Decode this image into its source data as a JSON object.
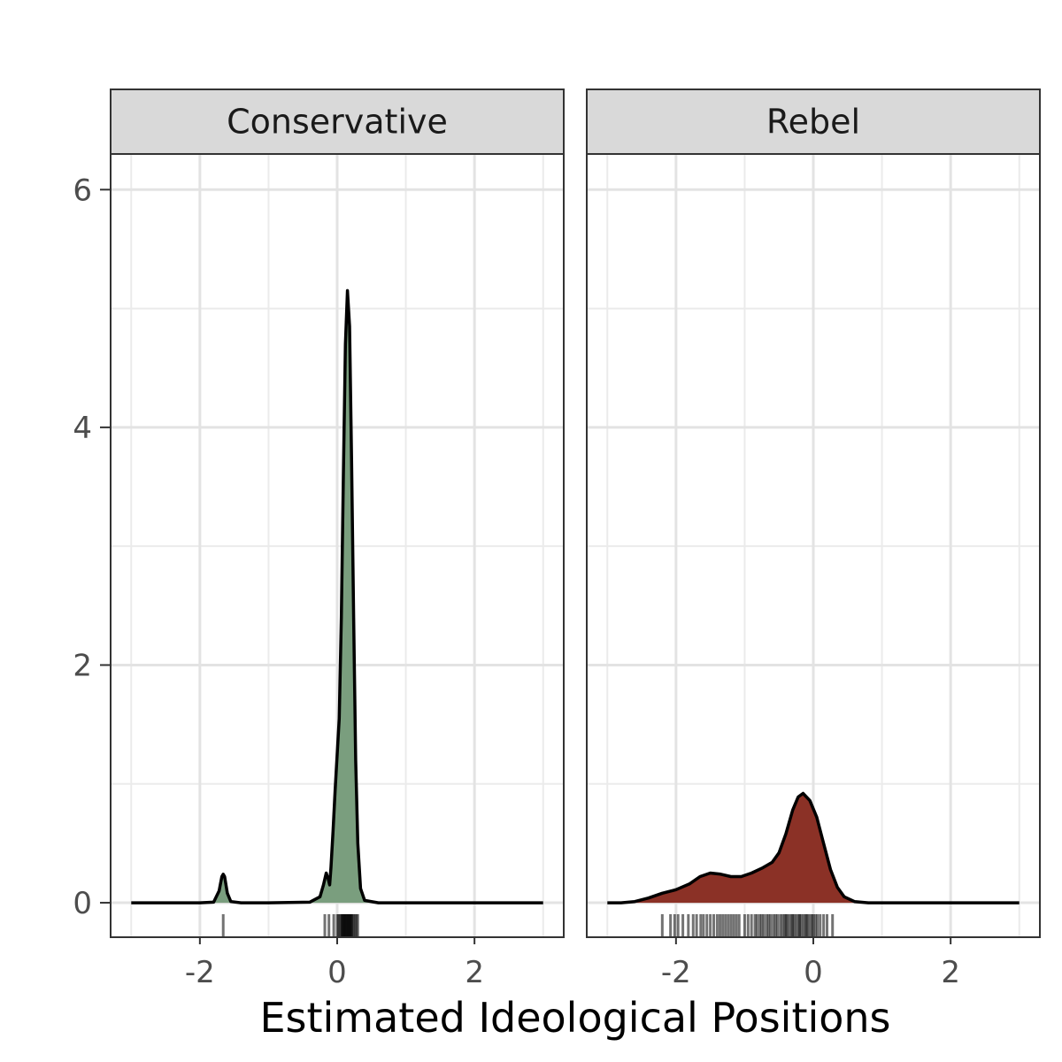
{
  "chart_data": {
    "type": "area",
    "xlabel": "Estimated Ideological Positions",
    "ylabel": "",
    "xlim": [
      -3.3,
      3.3
    ],
    "ylim": [
      -0.29,
      6.3
    ],
    "x_ticks": [
      -2,
      0,
      2
    ],
    "x_tick_labels": [
      "-2",
      "0",
      "2"
    ],
    "y_ticks": [
      0,
      2,
      4,
      6
    ],
    "y_tick_labels": [
      "0",
      "2",
      "4",
      "6"
    ],
    "grid": true,
    "legend": "none",
    "panels": [
      {
        "name": "Conservative",
        "fill_color": "#7a9e7e",
        "density": {
          "x": [
            -3.0,
            -2.0,
            -1.8,
            -1.72,
            -1.68,
            -1.66,
            -1.64,
            -1.6,
            -1.55,
            -1.4,
            -1.0,
            -0.4,
            -0.25,
            -0.2,
            -0.16,
            -0.13,
            -0.11,
            -0.09,
            -0.06,
            -0.03,
            0.0,
            0.03,
            0.06,
            0.09,
            0.12,
            0.15,
            0.18,
            0.21,
            0.24,
            0.27,
            0.3,
            0.34,
            0.4,
            0.6,
            1.0,
            2.0,
            3.0
          ],
          "y": [
            0,
            0,
            0.005,
            0.1,
            0.22,
            0.24,
            0.22,
            0.08,
            0.01,
            0,
            0,
            0.005,
            0.05,
            0.15,
            0.25,
            0.2,
            0.15,
            0.3,
            0.6,
            0.95,
            1.25,
            1.55,
            2.4,
            3.6,
            4.7,
            5.15,
            4.85,
            3.7,
            2.4,
            1.2,
            0.5,
            0.12,
            0.02,
            0,
            0,
            0,
            0
          ]
        },
        "rug": [
          -1.66,
          -0.18,
          -0.12,
          -0.05,
          0.0,
          0.02,
          0.04,
          0.06,
          0.07,
          0.08,
          0.09,
          0.1,
          0.11,
          0.12,
          0.13,
          0.14,
          0.15,
          0.16,
          0.17,
          0.18,
          0.19,
          0.2,
          0.21,
          0.22,
          0.24,
          0.26,
          0.28,
          0.3
        ]
      },
      {
        "name": "Rebel",
        "fill_color": "#8b3126",
        "density": {
          "x": [
            -3.0,
            -2.8,
            -2.6,
            -2.4,
            -2.2,
            -2.0,
            -1.8,
            -1.65,
            -1.5,
            -1.35,
            -1.2,
            -1.05,
            -0.9,
            -0.75,
            -0.6,
            -0.5,
            -0.4,
            -0.3,
            -0.22,
            -0.15,
            -0.05,
            0.05,
            0.15,
            0.25,
            0.35,
            0.45,
            0.6,
            0.8,
            1.0,
            1.5,
            2.0,
            3.0
          ],
          "y": [
            0,
            0,
            0.01,
            0.04,
            0.08,
            0.11,
            0.16,
            0.22,
            0.25,
            0.24,
            0.22,
            0.22,
            0.25,
            0.29,
            0.34,
            0.42,
            0.58,
            0.78,
            0.89,
            0.92,
            0.86,
            0.72,
            0.5,
            0.28,
            0.13,
            0.05,
            0.01,
            0,
            0,
            0,
            0,
            0
          ]
        },
        "rug": [
          -2.2,
          -2.08,
          -2.02,
          -1.97,
          -1.9,
          -1.82,
          -1.75,
          -1.7,
          -1.64,
          -1.6,
          -1.55,
          -1.5,
          -1.45,
          -1.4,
          -1.36,
          -1.32,
          -1.28,
          -1.24,
          -1.2,
          -1.16,
          -1.12,
          -1.08,
          -1.0,
          -0.95,
          -0.9,
          -0.85,
          -0.82,
          -0.78,
          -0.75,
          -0.72,
          -0.68,
          -0.65,
          -0.62,
          -0.58,
          -0.55,
          -0.52,
          -0.48,
          -0.45,
          -0.42,
          -0.4,
          -0.38,
          -0.35,
          -0.32,
          -0.3,
          -0.28,
          -0.25,
          -0.22,
          -0.2,
          -0.18,
          -0.15,
          -0.12,
          -0.1,
          -0.08,
          -0.05,
          -0.02,
          0.0,
          0.03,
          0.06,
          0.1,
          0.15,
          0.2,
          0.28
        ]
      }
    ]
  }
}
